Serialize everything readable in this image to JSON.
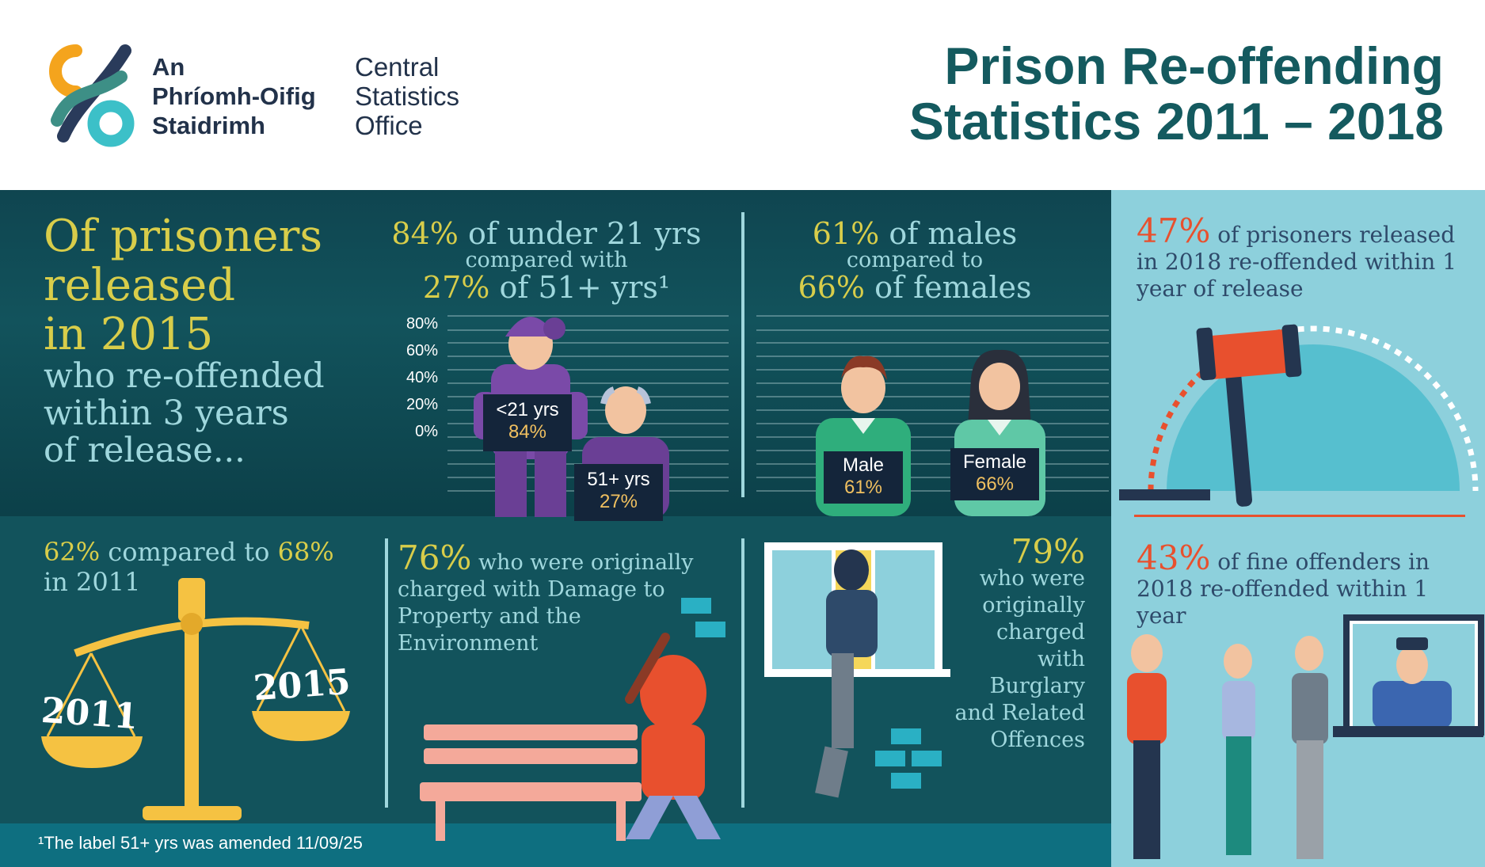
{
  "header": {
    "logo_ga": [
      "An",
      "Phríomh-Oifig",
      "Staidrimh"
    ],
    "logo_en": [
      "Central",
      "Statistics",
      "Office"
    ],
    "title_lines": [
      "Prison Re-offending",
      "Statistics 2011 – 2018"
    ]
  },
  "intro": {
    "headline_lines": [
      "Of prisoners",
      "released",
      "in 2015"
    ],
    "sub_lines": [
      "who re-offended",
      "within 3 years",
      "of release..."
    ]
  },
  "age": {
    "line1_pct": "84%",
    "line1_text": " of under 21 yrs",
    "line2": "compared with",
    "line3_pct": "27%",
    "line3_text": " of 51+ yrs¹",
    "y_ticks": [
      "80%",
      "60%",
      "40%",
      "20%",
      "0%"
    ],
    "placards": [
      {
        "label": "<21 yrs",
        "value": "84%"
      },
      {
        "label": "51+ yrs",
        "value": "27%"
      }
    ]
  },
  "sex": {
    "line1_pct": "61%",
    "line1_text": " of males",
    "line2": "compared to",
    "line3_pct": "66%",
    "line3_text": " of females",
    "placards": [
      {
        "label": "Male",
        "value": "61%"
      },
      {
        "label": "Female",
        "value": "66%"
      }
    ]
  },
  "release_2018": {
    "pct": "47%",
    "text": " of prisoners released in 2018 re-offended within 1 year of release",
    "gauge_fraction": 0.47
  },
  "fines": {
    "pct": "43%",
    "text": " of fine offenders in 2018 re-offended within 1 year"
  },
  "scale": {
    "pct_a": "62%",
    "mid": " compared to ",
    "pct_b": "68%",
    "tail": "in 2011",
    "pan_left": "2011",
    "pan_right": "2015"
  },
  "damage": {
    "pct": "76%",
    "text": " who were originally charged with Damage to Property and the Environment"
  },
  "burglary": {
    "pct": "79%",
    "text_lines": [
      "who were",
      "originally",
      "charged",
      "with",
      "Burglary",
      "and Related",
      "Offences"
    ]
  },
  "footnote": "¹The label 51+ yrs was amended 11/09/25",
  "colors": {
    "teal_dark": "#12535c",
    "teal_light": "#8dd0dc",
    "yellow": "#d8cd4a",
    "orange": "#e8502e",
    "navy": "#2e4a6a",
    "title": "#145a5f"
  }
}
